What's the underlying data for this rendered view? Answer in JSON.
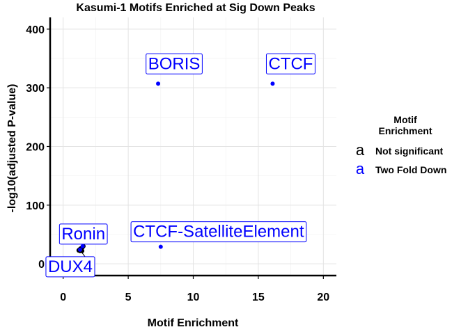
{
  "chart_data": {
    "type": "scatter",
    "title": "Kasumi-1 Motifs Enriched at Sig Down Peaks",
    "xlabel": "Motif Enrichment",
    "ylabel": "-log10(adjusted P-value)",
    "xlim": [
      -1,
      21
    ],
    "ylim": [
      -20,
      420
    ],
    "x_ticks": [
      0,
      5,
      10,
      15,
      20
    ],
    "y_ticks": [
      0,
      100,
      200,
      300,
      400
    ],
    "grid": true,
    "legend": {
      "title": [
        "Motif",
        "Enrichment"
      ],
      "position": "right",
      "key_glyph": "a",
      "entries": [
        {
          "label": "Not significant",
          "color": "#000000"
        },
        {
          "label": "Two Fold Down",
          "color": "#0000ff"
        }
      ]
    },
    "series": [
      {
        "name": "Not significant",
        "color": "#000000",
        "points": [
          {
            "x": 1.2,
            "y": 23
          },
          {
            "x": 1.25,
            "y": 24
          },
          {
            "x": 1.3,
            "y": 25
          },
          {
            "x": 1.35,
            "y": 26
          },
          {
            "x": 1.4,
            "y": 25
          },
          {
            "x": 1.45,
            "y": 27
          },
          {
            "x": 1.5,
            "y": 29
          },
          {
            "x": 1.55,
            "y": 30
          },
          {
            "x": 1.3,
            "y": 22
          },
          {
            "x": 1.45,
            "y": 22
          }
        ]
      },
      {
        "name": "Two Fold Down",
        "color": "#0000ff",
        "points": [
          {
            "x": 7.3,
            "y": 307,
            "label": "BORIS"
          },
          {
            "x": 16.1,
            "y": 307,
            "label": "CTCF"
          },
          {
            "x": 7.5,
            "y": 29,
            "label": "CTCF-SatelliteElement"
          },
          {
            "x": 1.5,
            "y": 30,
            "label": "Ronin"
          },
          {
            "x": 1.3,
            "y": 24,
            "label": "DUX4"
          }
        ]
      }
    ],
    "annotations": [
      {
        "text": "BORIS",
        "x": 7.3,
        "y": 307
      },
      {
        "text": "CTCF",
        "x": 16.1,
        "y": 307
      },
      {
        "text": "CTCF-SatelliteElement",
        "x": 7.5,
        "y": 29
      },
      {
        "text": "Ronin",
        "x": 1.5,
        "y": 30
      },
      {
        "text": "DUX4",
        "x": 1.3,
        "y": 24
      }
    ]
  }
}
